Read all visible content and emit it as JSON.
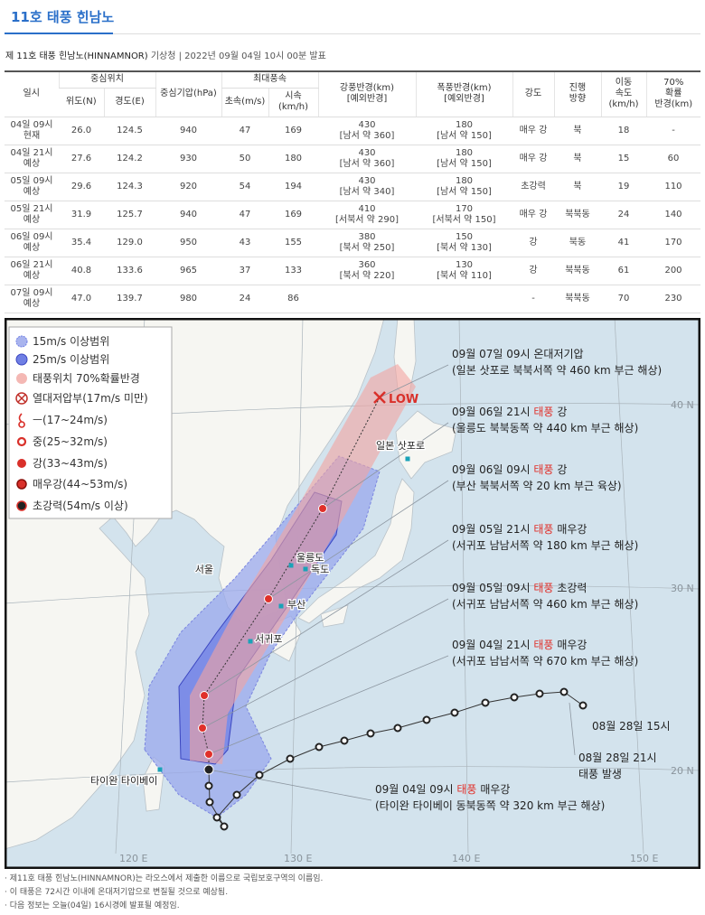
{
  "header": {
    "tab": "11호 태풍 힌남노",
    "title": "제 11호 태풍 힌남노(HINNAMNOR)",
    "source": "기상청 | 2022년 09월 04일 10시 00분 발표"
  },
  "table": {
    "headers": {
      "time": "일시",
      "center": "중심위치",
      "lat": "위도(N)",
      "lon": "경도(E)",
      "pressure": "중심기압(hPa)",
      "maxwind": "최대풍속",
      "ms": "초속(m/s)",
      "kmh": "시속\n(km/h)",
      "gale": "강풍반경(km)\n[예외반경]",
      "storm": "폭풍반경(km)\n[예외반경]",
      "intensity": "강도",
      "direction": "진행\n방향",
      "speed": "이동\n속도\n(km/h)",
      "prob": "70%\n확률\n반경(km)"
    },
    "rows": [
      [
        "04일 09시\n현재",
        "26.0",
        "124.5",
        "940",
        "47",
        "169",
        "430\n[남서 약 360]",
        "180\n[남서 약 150]",
        "매우 강",
        "북",
        "18",
        "-"
      ],
      [
        "04일 21시\n예상",
        "27.6",
        "124.2",
        "930",
        "50",
        "180",
        "430\n[남서 약 360]",
        "180\n[남서 약 150]",
        "매우 강",
        "북",
        "15",
        "60"
      ],
      [
        "05일 09시\n예상",
        "29.6",
        "124.3",
        "920",
        "54",
        "194",
        "430\n[남서 약 340]",
        "180\n[남서 약 150]",
        "초강력",
        "북",
        "19",
        "110"
      ],
      [
        "05일 21시\n예상",
        "31.9",
        "125.7",
        "940",
        "47",
        "169",
        "410\n[서북서 약 290]",
        "170\n[서북서 약 150]",
        "매우 강",
        "북북동",
        "24",
        "140"
      ],
      [
        "06일 09시\n예상",
        "35.4",
        "129.0",
        "950",
        "43",
        "155",
        "380\n[북서 약 250]",
        "150\n[북서 약 130]",
        "강",
        "북동",
        "41",
        "170"
      ],
      [
        "06일 21시\n예상",
        "40.8",
        "133.6",
        "965",
        "37",
        "133",
        "360\n[북서 약 220]",
        "130\n[북서 약 110]",
        "강",
        "북북동",
        "61",
        "200"
      ],
      [
        "07일 09시\n예상",
        "47.0",
        "139.7",
        "980",
        "24",
        "86",
        null,
        null,
        "-",
        "북북동",
        "70",
        "230"
      ]
    ]
  },
  "map": {
    "legend": [
      "15m/s 이상범위",
      "25m/s 이상범위",
      "태풍위치 70%확률반경",
      "열대저압부(17m/s 미만)",
      "ㅡ(17~24m/s)",
      "중(25~32m/s)",
      "강(33~43m/s)",
      "매우강(44~53m/s)",
      "초강력(54m/s 이상)"
    ],
    "annotations": [
      {
        "time": "09월 07일 09시",
        "strength": "온대저기압",
        "location": "(일본 삿포로 북북서쪽 약 460 km 부근 해상)"
      },
      {
        "time": "09월 06일 21시",
        "kind": "태풍",
        "strength": "강",
        "location": "(울릉도 북북동쪽 약 440 km 부근 해상)"
      },
      {
        "time": "09월 06일 09시",
        "kind": "태풍",
        "strength": "강",
        "location": "(부산 북북서쪽 약 20 km 부근 육상)"
      },
      {
        "time": "09월 05일 21시",
        "kind": "태풍",
        "strength": "매우강",
        "location": "(서귀포 남남서쪽 약 180 km 부근 해상)"
      },
      {
        "time": "09월 05일 09시",
        "kind": "태풍",
        "strength": "초강력",
        "location": "(서귀포 남남서쪽 약 460 km 부근 해상)"
      },
      {
        "time": "09월 04일 21시",
        "kind": "태풍",
        "strength": "매우강",
        "location": "(서귀포 남남서쪽 약 670 km 부근 해상)"
      },
      {
        "time": "09월 04일 09시",
        "kind": "태풍",
        "strength": "매우강",
        "location": "(타이완 타이베이 동북동쪽 약 320 km 부근 해상)"
      }
    ],
    "places": [
      "서울",
      "울릉도",
      "독도",
      "부산",
      "서귀포",
      "일본 삿포로",
      "타이완 타이베이",
      "LOW"
    ],
    "grid": [
      "40 N",
      "30 N",
      "20 N",
      "120 E",
      "130 E",
      "140 E",
      "150 E"
    ],
    "genesis": [
      "08월 28일 15시",
      "08월 28일 21시",
      "태풍 발생"
    ]
  },
  "notes": [
    "· 제11호 태풍 힌남노(HINNAMNOR)는 라오스에서 제출한 이름으로 국립보호구역의 이름임.",
    "· 이 태풍은 72시간 이내에 온대저기압으로 변질될 것으로 예상됨.",
    "· 다음 정보는 오늘(04일) 16시경에 발표될 예정임."
  ]
}
